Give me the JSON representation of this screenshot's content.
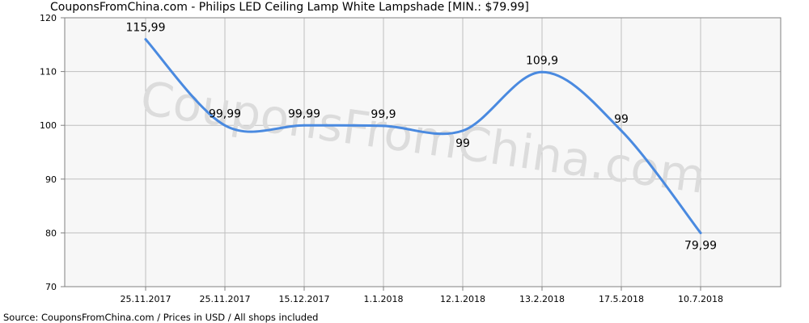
{
  "title": "CouponsFromChina.com - Philips LED Ceiling Lamp White Lampshade [MIN.: $79.99]",
  "source": "Source:  CouponsFromChina.com / Prices in USD / All shops included",
  "watermark": "CouponsFromChina.com",
  "colors": {
    "line": "#4a8ae0",
    "grid": "#bfbfbf",
    "plot_bg": "#f7f7f7",
    "axis": "#808080"
  },
  "chart_data": {
    "type": "line",
    "title": "CouponsFromChina.com - Philips LED Ceiling Lamp White Lampshade [MIN.: $79.99]",
    "xlabel": "",
    "ylabel": "",
    "ylim": [
      70,
      120
    ],
    "yticks": [
      70,
      80,
      90,
      100,
      110,
      120
    ],
    "grid": true,
    "categories": [
      "25.11.2017",
      "25.11.2017",
      "15.12.2017",
      "1.1.2018",
      "12.1.2018",
      "13.2.2018",
      "17.5.2018",
      "10.7.2018"
    ],
    "values": [
      115.99,
      99.99,
      99.99,
      99.9,
      99,
      109.9,
      99,
      79.99
    ],
    "data_labels": [
      "115,99",
      "99,99",
      "99,99",
      "99,9",
      "99",
      "109,9",
      "99",
      "79,99"
    ]
  }
}
